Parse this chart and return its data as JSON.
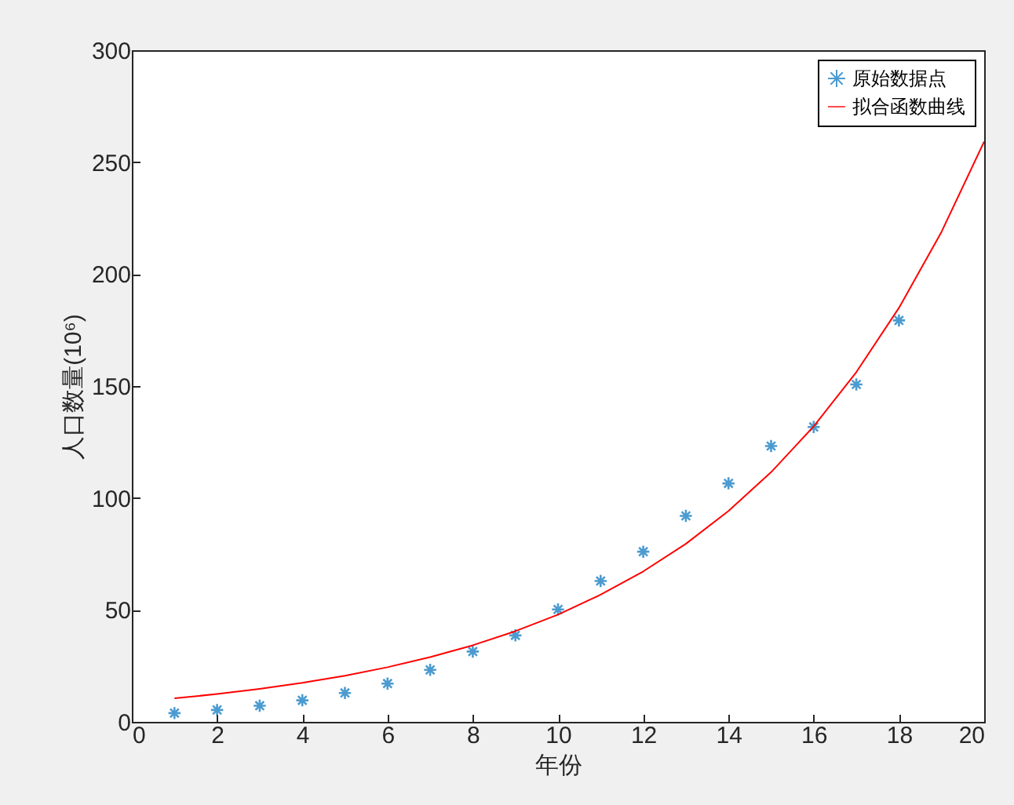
{
  "chart_data": {
    "type": "scatter",
    "xlabel": "年份",
    "ylabel": "人口数量(10⁶)",
    "xlim": [
      0,
      20
    ],
    "ylim": [
      0,
      300
    ],
    "xticks": [
      0,
      2,
      4,
      6,
      8,
      10,
      12,
      14,
      16,
      18,
      20
    ],
    "yticks": [
      0,
      50,
      100,
      150,
      200,
      250,
      300
    ],
    "grid": false,
    "legend": "top right",
    "series": [
      {
        "name": "原始数据点",
        "marker": "cross",
        "color": "#0072bd",
        "x": [
          1,
          2,
          3,
          4,
          5,
          6,
          7,
          8,
          9,
          10,
          11,
          12,
          13,
          14,
          15,
          16,
          17,
          18
        ],
        "values": [
          3.9,
          5.3,
          7.2,
          9.6,
          12.9,
          17.1,
          23.2,
          31.4,
          38.6,
          50.2,
          62.9,
          76.0,
          92.0,
          106.5,
          123.2,
          131.7,
          150.7,
          179.3
        ]
      },
      {
        "name": "拟合函数曲线",
        "type": "line",
        "line_style": "solid",
        "color": "#ff0000",
        "x": [
          1,
          2,
          3,
          4,
          5,
          6,
          7,
          8,
          9,
          10,
          11,
          12,
          13,
          14,
          15,
          16,
          17,
          18,
          19,
          20
        ],
        "values": [
          10.5,
          12.4,
          14.7,
          17.4,
          20.6,
          24.4,
          28.9,
          34.2,
          40.5,
          47.9,
          56.8,
          67.2,
          79.5,
          94.2,
          111.5,
          132.0,
          156.2,
          184.9,
          218.9,
          259.2
        ]
      }
    ]
  }
}
